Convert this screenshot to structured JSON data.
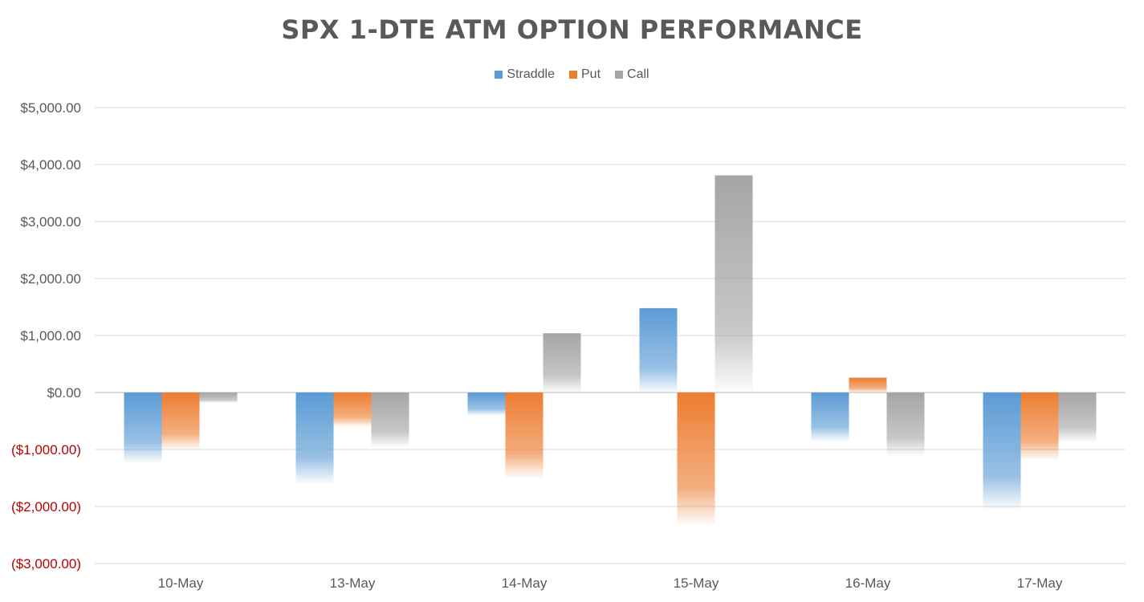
{
  "chart_data": {
    "type": "bar",
    "title": "SPX 1-DTE ATM OPTION PERFORMANCE",
    "xlabel": "",
    "ylabel": "",
    "categories": [
      "10-May",
      "13-May",
      "14-May",
      "15-May",
      "16-May",
      "17-May"
    ],
    "series": [
      {
        "name": "Straddle",
        "color": "#5b9bd5",
        "values": [
          -1230,
          -1600,
          -400,
          1480,
          -850,
          -2050
        ]
      },
      {
        "name": "Put",
        "color": "#ed7d31",
        "values": [
          -1000,
          -600,
          -1500,
          -2330,
          260,
          -1180
        ]
      },
      {
        "name": "Call",
        "color": "#a5a5a5",
        "values": [
          -180,
          -950,
          1040,
          3810,
          -1110,
          -860
        ]
      }
    ],
    "ylim": [
      -3000,
      5000
    ],
    "yticks": [
      5000,
      4000,
      3000,
      2000,
      1000,
      0,
      -1000,
      -2000,
      -3000
    ],
    "ytick_labels": [
      "$5,000.00",
      "$4,000.00",
      "$3,000.00",
      "$2,000.00",
      "$1,000.00",
      "$0.00",
      "($1,000.00)",
      "($2,000.00)",
      "($3,000.00)"
    ],
    "negative_label_color": "#c00000",
    "grid": true,
    "legend_position": "top"
  }
}
